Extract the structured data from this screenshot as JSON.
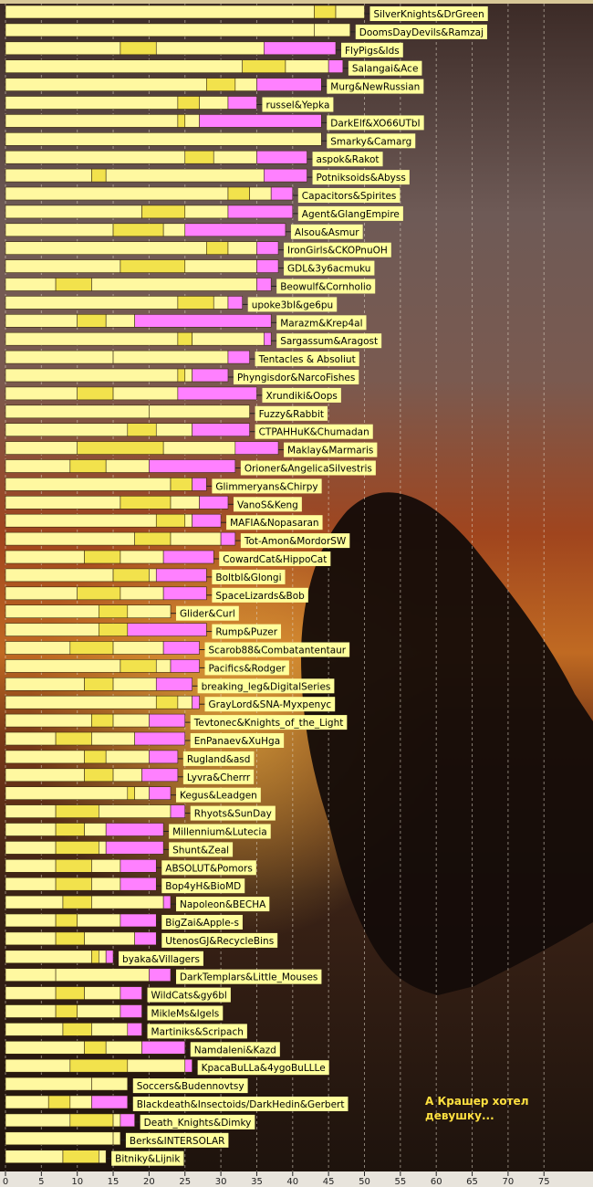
{
  "chart_data": {
    "type": "bar",
    "orientation": "horizontal",
    "stacked": true,
    "xlim": [
      0,
      78
    ],
    "x_ticks": [
      "0",
      "5",
      "10",
      "15",
      "20",
      "25",
      "30",
      "35",
      "40",
      "45",
      "50",
      "55",
      "60",
      "65",
      "70",
      "75"
    ],
    "grid": "vertical dashed",
    "segment_colors": [
      "#fff8a0",
      "#f2e24c",
      "#fff8a0",
      "#ff80ff"
    ],
    "bar_fill": "#fff8a0",
    "accent_fill": "#f2e24c",
    "final_fill": "#ff80ff",
    "label_fill": "#ffff9c",
    "annotation": [
      "А Крашер хотел",
      "девушку..."
    ],
    "categories": [
      "SilverKnights&DrGreen",
      "DoomsDayDevils&Ramzaj",
      "FlyPigs&Ids",
      "Salangai&Ace",
      "Murg&NewRussian",
      "russel&Yepka",
      "DarkElf&XO66UTbI",
      "Smarky&Camarg",
      "aspok&Rakot",
      "Potniksoids&Abyss",
      "Capacitors&Spirites",
      "Agent&GlangEmpire",
      "Alsou&Asmur",
      "IronGirls&CKOPnuOH",
      "GDL&3y6acmuku",
      "Beowulf&Cornholio",
      "upoke3bl&ge6pu",
      "Marazm&Krep4al",
      "Sargassum&Aragost",
      "Tentacles & Absoliut",
      "Phyngisdor&NarcoFishes",
      "Xrundiki&Oops",
      "Fuzzy&Rabbit",
      "CTPAHHuK&Chumadan",
      "Maklay&Marmaris",
      "Orioner&AngelicaSilvestris",
      "Glimmeryans&Chirpy",
      "VanoS&Keng",
      "MAFIA&Nopasaran",
      "Tot-Amon&MordorSW",
      "CowardCat&HippoCat",
      "Boltbl&Glongi",
      "SpaceLizards&Bob",
      "Glider&Curl",
      "Rump&Puzer",
      "Scarob88&Combatantentaur",
      "Pacifics&Rodger",
      "breaking_leg&DigitalSeries",
      "GrayLord&SNA-Myxpenyc",
      "Tevtonec&Knights_of_the_Light",
      "EnPanaev&XuHga",
      "Rugland&asd",
      "Lyvra&Cherrr",
      "Kegus&Leadgen",
      "Rhyots&SunDay",
      "Millennium&Lutecia",
      "Shunt&Zeal",
      "ABSOLUT&Pomors",
      "Bop4yH&BioMD",
      "Napoleon&BECHA",
      "BigZai&Apple-s",
      "UtenosGJ&RecycleBins",
      "byaka&Villagers",
      "DarkTemplars&Little_Mouses",
      "WildCats&gy6bl",
      "MikleMs&Igels",
      "Martiniks&Scripach",
      "Namdaleni&Kazd",
      "KpacaBuLLa&4ygoBuLLLe",
      "Soccers&Budennovtsy",
      "Blackdeath&Insectoids/DarkHedin&Gerbert",
      "Death_Knights&Dimky",
      "Berks&INTERSOLAR",
      "Bitniky&Lijnik"
    ],
    "series": [
      {
        "values": [
          43,
          43,
          16,
          33,
          28,
          24,
          24,
          44,
          25,
          12,
          31,
          19,
          15,
          28,
          16,
          7,
          24,
          10,
          24,
          15,
          24,
          10,
          20,
          17,
          10,
          9,
          23,
          16,
          21,
          18,
          11,
          15,
          10,
          13,
          13,
          9,
          16,
          11,
          21,
          12,
          7,
          11,
          11,
          17,
          7,
          7,
          7,
          7,
          7,
          8,
          7,
          7,
          12,
          7,
          7,
          7,
          8,
          11,
          9,
          12,
          6,
          9,
          15,
          8
        ]
      },
      {
        "values": [
          3,
          0,
          5,
          6,
          4,
          3,
          1,
          0,
          4,
          2,
          3,
          6,
          7,
          3,
          9,
          5,
          5,
          4,
          2,
          0,
          1,
          5,
          0,
          4,
          12,
          5,
          3,
          7,
          4,
          5,
          5,
          5,
          6,
          4,
          4,
          6,
          5,
          4,
          3,
          3,
          5,
          3,
          4,
          1,
          6,
          4,
          6,
          5,
          5,
          4,
          3,
          4,
          1,
          0,
          4,
          3,
          4,
          3,
          8,
          0,
          3,
          6,
          0,
          5
        ]
      },
      {
        "values": [
          4,
          5,
          15,
          6,
          3,
          4,
          2,
          0,
          6,
          22,
          3,
          6,
          3,
          4,
          10,
          23,
          2,
          4,
          10,
          16,
          1,
          9,
          14,
          5,
          10,
          6,
          0,
          4,
          1,
          7,
          6,
          1,
          6,
          6,
          0,
          7,
          2,
          6,
          2,
          5,
          6,
          6,
          4,
          2,
          10,
          3,
          1,
          4,
          4,
          10,
          6,
          7,
          1,
          13,
          5,
          6,
          5,
          5,
          8,
          5,
          3,
          1,
          1,
          1
        ]
      },
      {
        "values": [
          0,
          0,
          10,
          2,
          9,
          4,
          17,
          0,
          7,
          6,
          3,
          9,
          14,
          3,
          3,
          2,
          2,
          19,
          1,
          3,
          5,
          11,
          0,
          8,
          6,
          12,
          2,
          4,
          4,
          2,
          7,
          7,
          6,
          0,
          11,
          5,
          4,
          5,
          1,
          5,
          7,
          4,
          5,
          3,
          2,
          8,
          8,
          5,
          5,
          1,
          5,
          3,
          1,
          3,
          3,
          3,
          2,
          6,
          1,
          0,
          5,
          2,
          0,
          0
        ]
      }
    ]
  }
}
